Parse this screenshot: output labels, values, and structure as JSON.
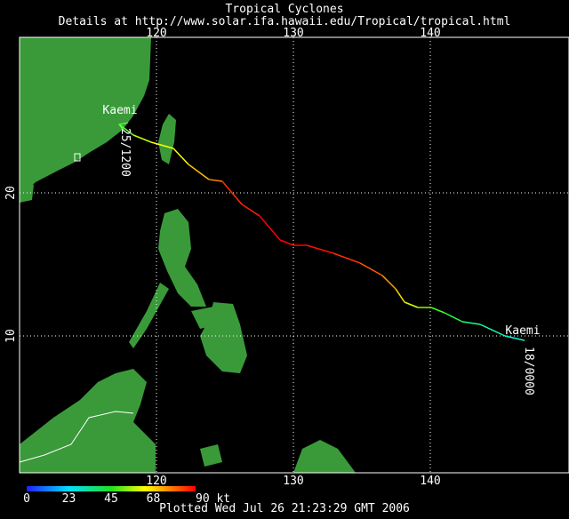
{
  "header": {
    "title": "Tropical Cyclones",
    "subtitle": "Details at http://www.solar.ifa.hawaii.edu/Tropical/tropical.html"
  },
  "map": {
    "lon_ticks": [
      120,
      130,
      140
    ],
    "lat_ticks": [
      20,
      10
    ]
  },
  "storm": {
    "name": "Kaemi",
    "start_label": "18/0000",
    "end_label": "25/1200"
  },
  "legend": {
    "labels": [
      "0",
      "23",
      "45",
      "68",
      "90 kt"
    ]
  },
  "footer": "Plotted Wed Jul 26 21:23:29 GMT 2006"
}
